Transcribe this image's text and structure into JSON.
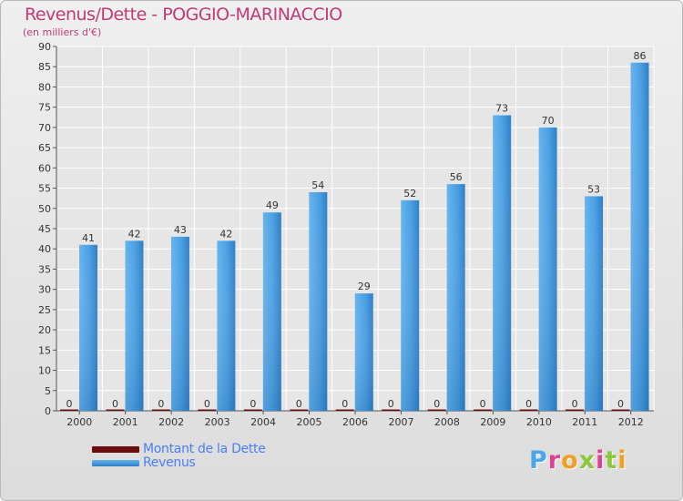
{
  "chart_data": {
    "type": "bar",
    "title": "Revenus/Dette - POGGIO-MARINACCIO",
    "subtitle": "(en milliers d'€)",
    "categories": [
      "2000",
      "2001",
      "2002",
      "2003",
      "2004",
      "2005",
      "2006",
      "2007",
      "2008",
      "2009",
      "2010",
      "2011",
      "2012"
    ],
    "series": [
      {
        "name": "Montant de la Dette",
        "color": "#6b0d0d",
        "values": [
          0,
          0,
          0,
          0,
          0,
          0,
          0,
          0,
          0,
          0,
          0,
          0,
          0
        ]
      },
      {
        "name": "Revenus",
        "color": "#4da3e6",
        "values": [
          41,
          42,
          43,
          42,
          49,
          54,
          29,
          52,
          56,
          73,
          70,
          53,
          86
        ]
      }
    ],
    "ylim": [
      0,
      90
    ],
    "yticks": [
      0,
      5,
      10,
      15,
      20,
      25,
      30,
      35,
      40,
      45,
      50,
      55,
      60,
      65,
      70,
      75,
      80,
      85,
      90
    ],
    "grid": true,
    "legend_position": "bottom-left"
  },
  "legend": {
    "items": [
      {
        "label": "Montant de la Dette",
        "color": "#6b0d0d"
      },
      {
        "label": "Revenus",
        "color": "#4da3e6"
      }
    ]
  },
  "logo": {
    "text": "Proxiti"
  }
}
